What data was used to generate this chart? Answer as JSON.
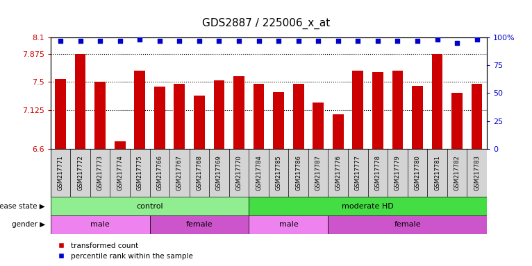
{
  "title": "GDS2887 / 225006_x_at",
  "samples": [
    "GSM217771",
    "GSM217772",
    "GSM217773",
    "GSM217774",
    "GSM217775",
    "GSM217766",
    "GSM217767",
    "GSM217768",
    "GSM217769",
    "GSM217770",
    "GSM217784",
    "GSM217785",
    "GSM217786",
    "GSM217787",
    "GSM217776",
    "GSM217777",
    "GSM217778",
    "GSM217779",
    "GSM217780",
    "GSM217781",
    "GSM217782",
    "GSM217783"
  ],
  "bar_values": [
    7.54,
    7.87,
    7.5,
    6.7,
    7.65,
    7.44,
    7.47,
    7.32,
    7.52,
    7.58,
    7.47,
    7.36,
    7.47,
    7.22,
    7.07,
    7.65,
    7.63,
    7.65,
    7.45,
    7.87,
    7.35,
    7.47
  ],
  "percentile_values": [
    97,
    97,
    97,
    97,
    98,
    97,
    97,
    97,
    97,
    97,
    97,
    97,
    97,
    97,
    97,
    97,
    97,
    97,
    97,
    98,
    95,
    98
  ],
  "ylim_left": [
    6.6,
    8.1
  ],
  "yticks_left": [
    6.6,
    7.125,
    7.5,
    7.875,
    8.1
  ],
  "ytick_labels_left": [
    "6.6",
    "7.125",
    "7.5",
    "7.875",
    "8.1"
  ],
  "ylim_right": [
    0,
    100
  ],
  "yticks_right": [
    0,
    25,
    50,
    75,
    100
  ],
  "ytick_labels_right": [
    "0",
    "25",
    "50",
    "75",
    "100%"
  ],
  "bar_color": "#cc0000",
  "dot_color": "#0000cc",
  "hline_values": [
    7.125,
    7.5,
    7.875
  ],
  "disease_state_groups": [
    {
      "label": "control",
      "start": 0,
      "end": 10,
      "color": "#90ee90"
    },
    {
      "label": "moderate HD",
      "start": 10,
      "end": 22,
      "color": "#44dd44"
    }
  ],
  "gender_groups": [
    {
      "label": "male",
      "start": 0,
      "end": 5,
      "color": "#ee82ee"
    },
    {
      "label": "female",
      "start": 5,
      "end": 10,
      "color": "#cc55cc"
    },
    {
      "label": "male",
      "start": 10,
      "end": 14,
      "color": "#ee82ee"
    },
    {
      "label": "female",
      "start": 14,
      "end": 22,
      "color": "#cc55cc"
    }
  ]
}
